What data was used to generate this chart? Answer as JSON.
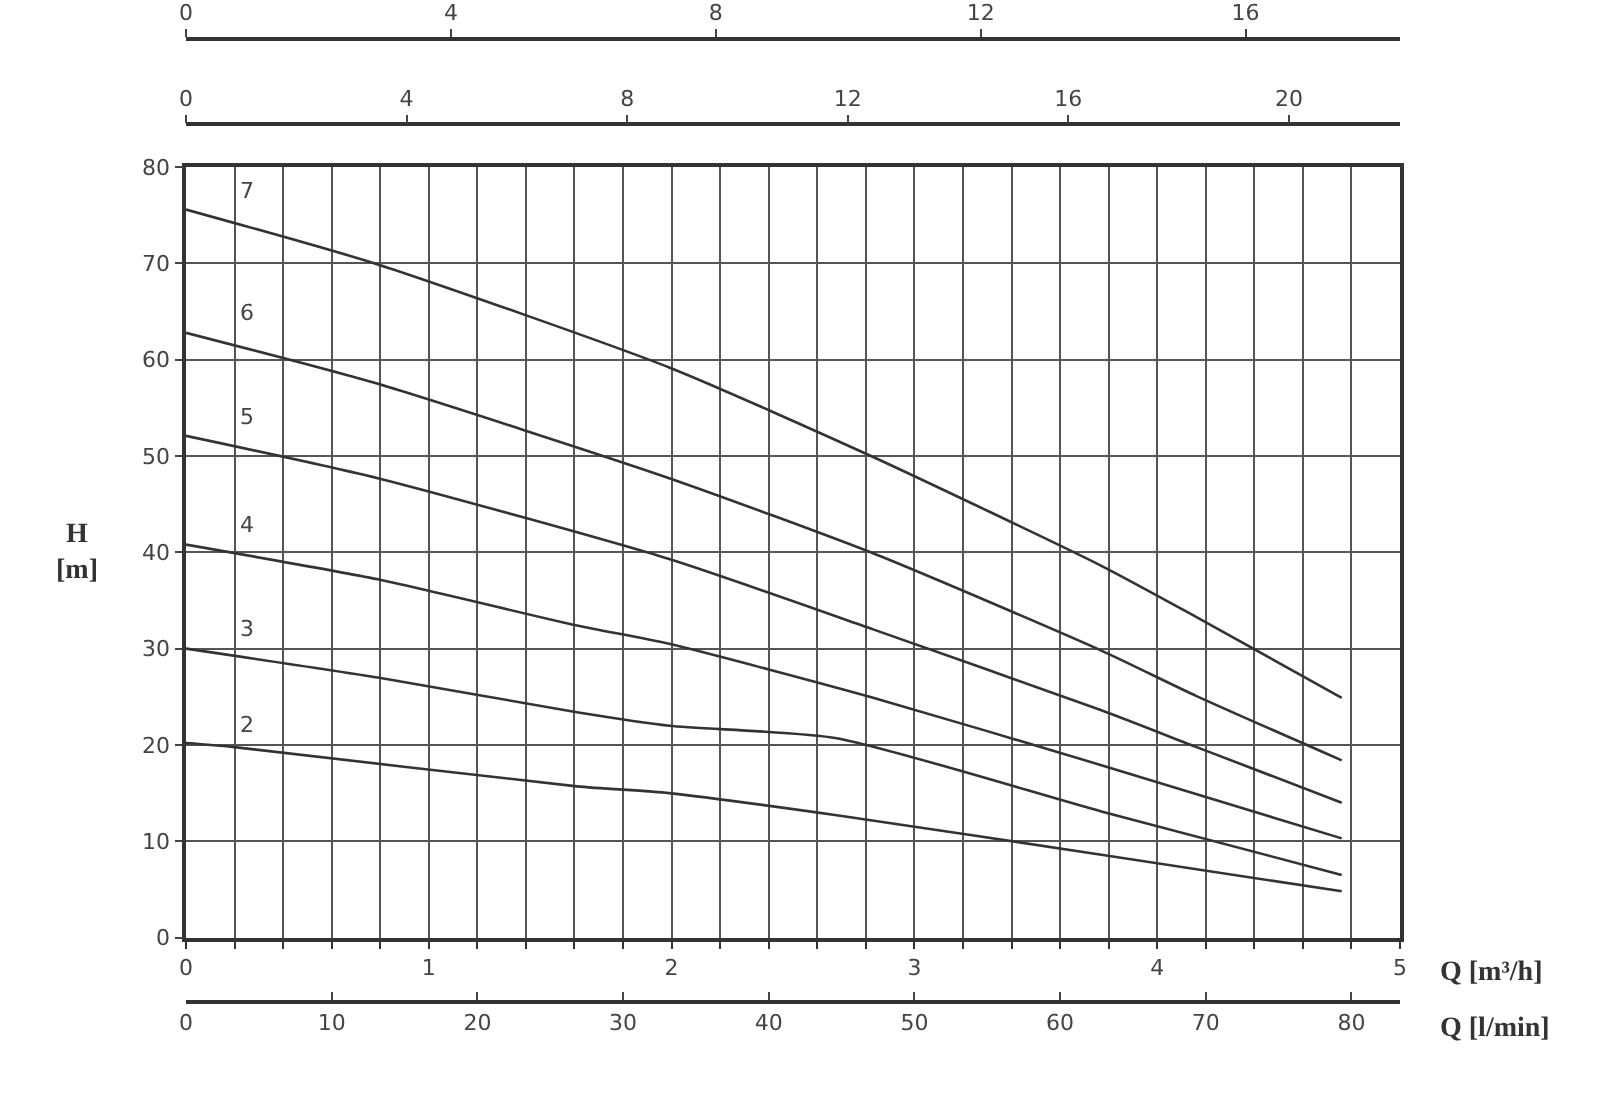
{
  "chart_data": {
    "type": "line",
    "xlabel": "Q [m³/h]",
    "x2label": "Q [l/min]",
    "ylabel": "H [m]",
    "xlim": [
      0,
      5
    ],
    "xticks": [
      0,
      {
        "value": 0.2,
        "label": null
      },
      {
        "value": 0.4,
        "label": null
      },
      {
        "value": 0.6,
        "label": null
      },
      {
        "value": 0.8,
        "label": null
      },
      1,
      {
        "value": 1.2,
        "label": null
      },
      {
        "value": 1.4,
        "label": null
      },
      {
        "value": 1.6,
        "label": null
      },
      {
        "value": 1.8,
        "label": null
      },
      2,
      {
        "value": 2.2,
        "label": null
      },
      {
        "value": 2.4,
        "label": null
      },
      {
        "value": 2.6,
        "label": null
      },
      {
        "value": 2.8,
        "label": null
      },
      3,
      {
        "value": 3.2,
        "label": null
      },
      {
        "value": 3.4,
        "label": null
      },
      {
        "value": 3.6,
        "label": null
      },
      {
        "value": 3.8,
        "label": null
      },
      4,
      {
        "value": 4.2,
        "label": null
      },
      {
        "value": 4.4,
        "label": null
      },
      {
        "value": 4.6,
        "label": null
      },
      {
        "value": 4.8,
        "label": null
      },
      5
    ],
    "x2lim": [
      0,
      83.33
    ],
    "x2ticks": [
      0,
      10,
      20,
      30,
      40,
      50,
      60,
      70,
      80
    ],
    "annotations": [
      "0",
      "4",
      "8",
      "12",
      "16",
      "0",
      "4",
      "8",
      "12",
      "16",
      "20"
    ],
    "ylim": [
      0,
      80
    ],
    "yticks": [
      0,
      10,
      20,
      30,
      40,
      50,
      60,
      70,
      80
    ],
    "grid": true,
    "legend": false,
    "marker": "none",
    "line_style": "solid",
    "series": [
      {
        "name": "7",
        "color": "#333333",
        "x": [
          0,
          0.79,
          1.99,
          2.83,
          3.77,
          4.16,
          4.76
        ],
        "values": [
          75.6,
          69.9,
          59.2,
          49.9,
          38.6,
          33.3,
          24.9
        ]
      },
      {
        "name": "6",
        "color": "#333333",
        "x": [
          0,
          0.79,
          1.99,
          2.83,
          3.77,
          4.16,
          4.76
        ],
        "values": [
          62.8,
          57.5,
          47.7,
          39.9,
          29.8,
          25.1,
          18.4
        ]
      },
      {
        "name": "5",
        "color": "#333333",
        "x": [
          0,
          0.79,
          1.99,
          2.83,
          3.77,
          4.16,
          4.76
        ],
        "values": [
          52.1,
          47.7,
          39.3,
          32.0,
          23.6,
          19.8,
          14.0
        ]
      },
      {
        "name": "4",
        "color": "#333333",
        "x": [
          0,
          0.79,
          1.61,
          1.99,
          2.83,
          3.77,
          4.76
        ],
        "values": [
          40.8,
          37.2,
          32.4,
          30.5,
          24.9,
          17.9,
          10.3
        ]
      },
      {
        "name": "3",
        "color": "#333333",
        "x": [
          0,
          0.79,
          1.61,
          1.99,
          2.68,
          3.77,
          4.76
        ],
        "values": [
          30.0,
          27.0,
          23.4,
          22.0,
          20.7,
          13.1,
          6.5
        ]
      },
      {
        "name": "2",
        "color": "#333333",
        "x": [
          0,
          0.19,
          1.61,
          1.99,
          2.68,
          3.77,
          4.76
        ],
        "values": [
          20.2,
          19.8,
          15.7,
          15.0,
          12.7,
          8.6,
          4.8
        ]
      }
    ]
  }
}
